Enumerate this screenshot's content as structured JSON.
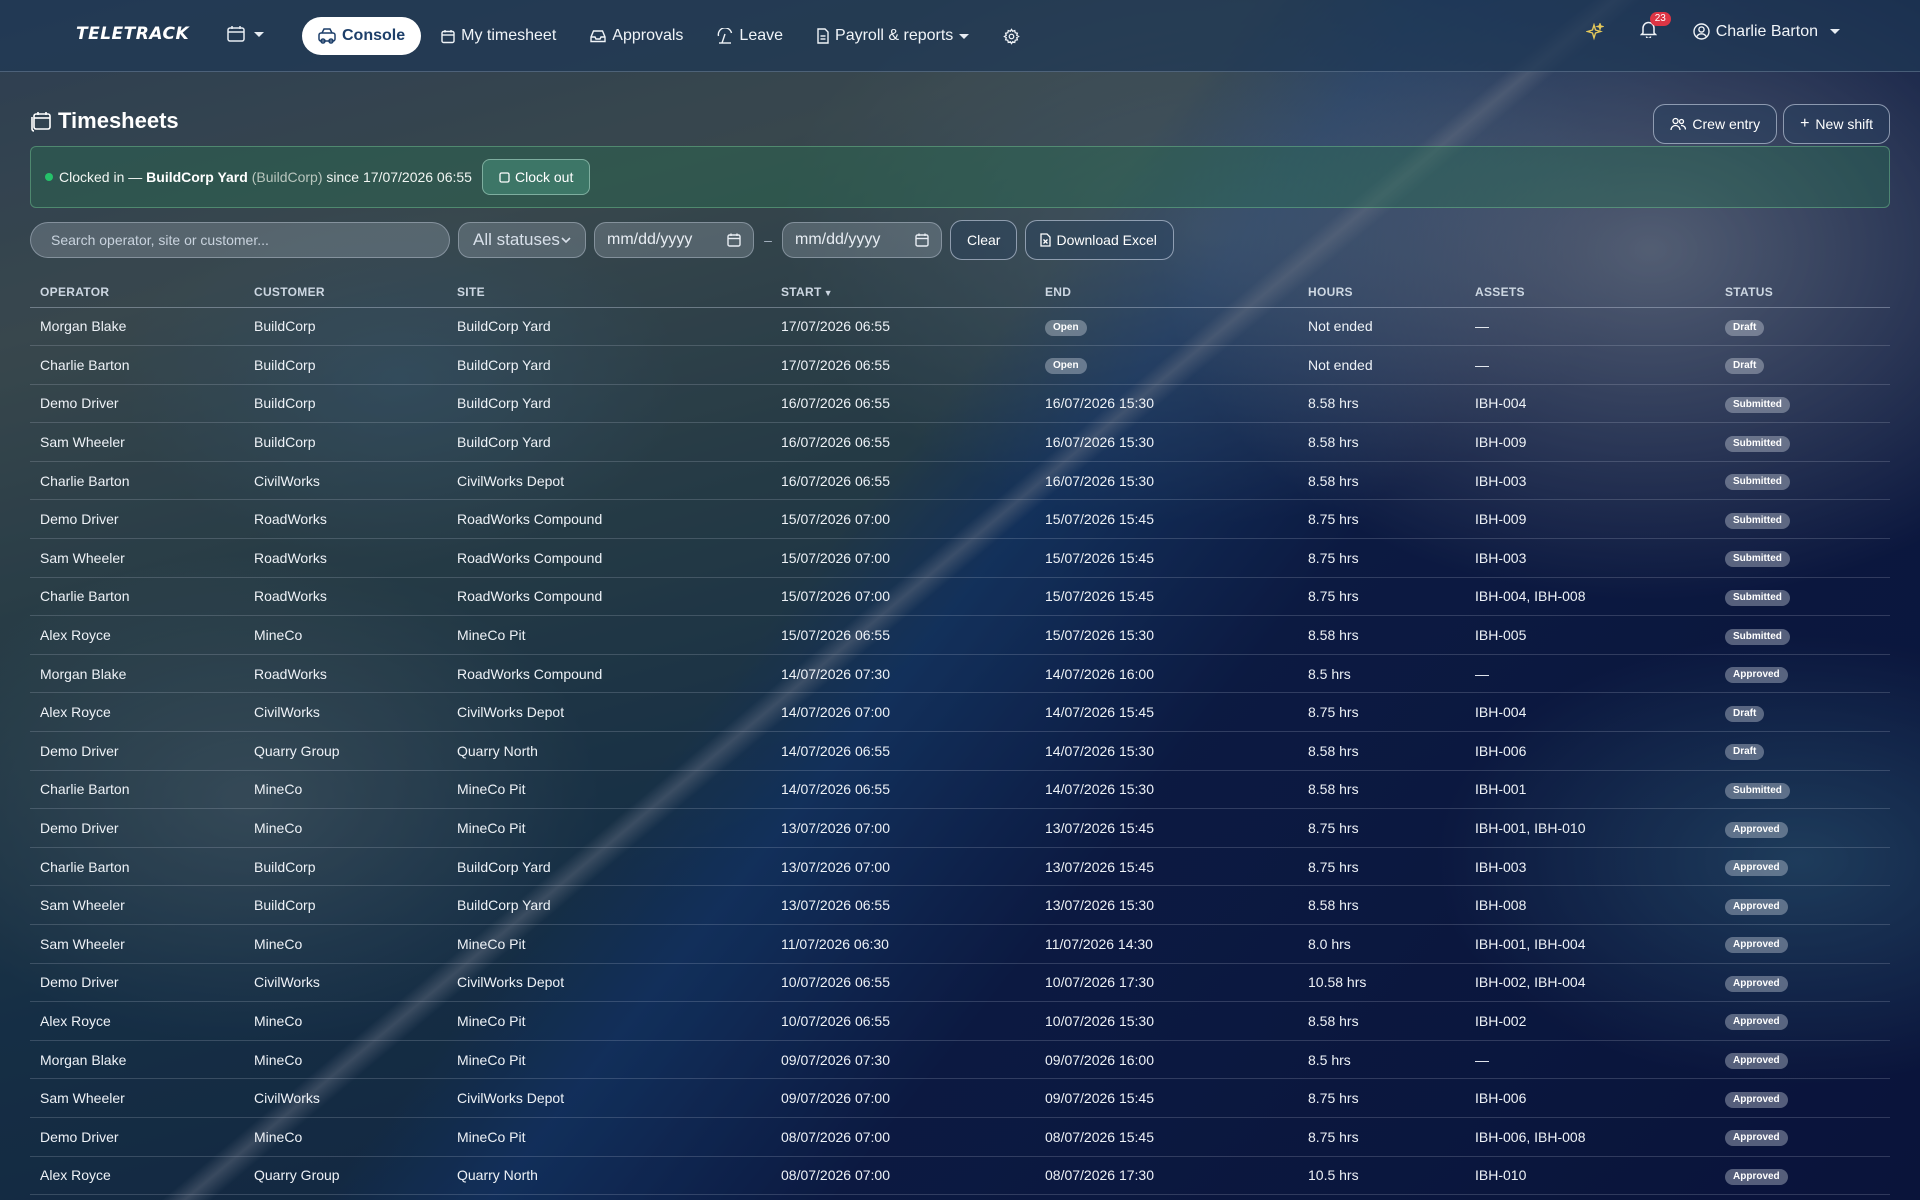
{
  "nav": {
    "brand": "TELETRACK",
    "items": [
      {
        "label": "Console",
        "icon": "console-icon",
        "active": true
      },
      {
        "label": "My timesheet",
        "icon": "calendar-icon",
        "active": false
      },
      {
        "label": "Approvals",
        "icon": "inbox-icon",
        "active": false
      },
      {
        "label": "Leave",
        "icon": "umbrella-icon",
        "active": false
      },
      {
        "label": "Payroll & reports",
        "icon": "document-icon",
        "active": false,
        "dropdown": true
      }
    ],
    "notifications_count": "23",
    "user_name": "Charlie Barton"
  },
  "page": {
    "title": "Timesheets",
    "crew_entry_label": "Crew entry",
    "new_shift_label": "New shift"
  },
  "clock": {
    "prefix": "Clocked in —",
    "site": "BuildCorp Yard",
    "customer": "(BuildCorp)",
    "since": "since 17/07/2026 06:55",
    "clock_out_label": "Clock out",
    "status_color": "#25c26a"
  },
  "filters": {
    "search_placeholder": "Search operator, site or customer...",
    "status_value": "All statuses",
    "date_from_placeholder": "mm/dd/yyyy",
    "date_to_placeholder": "mm/dd/yyyy",
    "dash": "–",
    "clear_label": "Clear",
    "excel_label": "Download Excel"
  },
  "table": {
    "columns": [
      "OPERATOR",
      "CUSTOMER",
      "SITE",
      "START",
      "END",
      "HOURS",
      "ASSETS",
      "STATUS"
    ],
    "sort_indicator": "▼",
    "rows": [
      {
        "operator": "Morgan Blake",
        "customer": "BuildCorp",
        "site": "BuildCorp Yard",
        "start": "17/07/2026 06:55",
        "end": "Open",
        "hours": "Not ended",
        "assets": "—",
        "status": "Draft"
      },
      {
        "operator": "Charlie Barton",
        "customer": "BuildCorp",
        "site": "BuildCorp Yard",
        "start": "17/07/2026 06:55",
        "end": "Open",
        "hours": "Not ended",
        "assets": "—",
        "status": "Draft"
      },
      {
        "operator": "Demo Driver",
        "customer": "BuildCorp",
        "site": "BuildCorp Yard",
        "start": "16/07/2026 06:55",
        "end": "16/07/2026 15:30",
        "hours": "8.58 hrs",
        "assets": "IBH-004",
        "status": "Submitted"
      },
      {
        "operator": "Sam Wheeler",
        "customer": "BuildCorp",
        "site": "BuildCorp Yard",
        "start": "16/07/2026 06:55",
        "end": "16/07/2026 15:30",
        "hours": "8.58 hrs",
        "assets": "IBH-009",
        "status": "Submitted"
      },
      {
        "operator": "Charlie Barton",
        "customer": "CivilWorks",
        "site": "CivilWorks Depot",
        "start": "16/07/2026 06:55",
        "end": "16/07/2026 15:30",
        "hours": "8.58 hrs",
        "assets": "IBH-003",
        "status": "Submitted"
      },
      {
        "operator": "Demo Driver",
        "customer": "RoadWorks",
        "site": "RoadWorks Compound",
        "start": "15/07/2026 07:00",
        "end": "15/07/2026 15:45",
        "hours": "8.75 hrs",
        "assets": "IBH-009",
        "status": "Submitted"
      },
      {
        "operator": "Sam Wheeler",
        "customer": "RoadWorks",
        "site": "RoadWorks Compound",
        "start": "15/07/2026 07:00",
        "end": "15/07/2026 15:45",
        "hours": "8.75 hrs",
        "assets": "IBH-003",
        "status": "Submitted"
      },
      {
        "operator": "Charlie Barton",
        "customer": "RoadWorks",
        "site": "RoadWorks Compound",
        "start": "15/07/2026 07:00",
        "end": "15/07/2026 15:45",
        "hours": "8.75 hrs",
        "assets": "IBH-004, IBH-008",
        "status": "Submitted"
      },
      {
        "operator": "Alex Royce",
        "customer": "MineCo",
        "site": "MineCo Pit",
        "start": "15/07/2026 06:55",
        "end": "15/07/2026 15:30",
        "hours": "8.58 hrs",
        "assets": "IBH-005",
        "status": "Submitted"
      },
      {
        "operator": "Morgan Blake",
        "customer": "RoadWorks",
        "site": "RoadWorks Compound",
        "start": "14/07/2026 07:30",
        "end": "14/07/2026 16:00",
        "hours": "8.5 hrs",
        "assets": "—",
        "status": "Approved"
      },
      {
        "operator": "Alex Royce",
        "customer": "CivilWorks",
        "site": "CivilWorks Depot",
        "start": "14/07/2026 07:00",
        "end": "14/07/2026 15:45",
        "hours": "8.75 hrs",
        "assets": "IBH-004",
        "status": "Draft"
      },
      {
        "operator": "Demo Driver",
        "customer": "Quarry Group",
        "site": "Quarry North",
        "start": "14/07/2026 06:55",
        "end": "14/07/2026 15:30",
        "hours": "8.58 hrs",
        "assets": "IBH-006",
        "status": "Draft"
      },
      {
        "operator": "Charlie Barton",
        "customer": "MineCo",
        "site": "MineCo Pit",
        "start": "14/07/2026 06:55",
        "end": "14/07/2026 15:30",
        "hours": "8.58 hrs",
        "assets": "IBH-001",
        "status": "Submitted"
      },
      {
        "operator": "Demo Driver",
        "customer": "MineCo",
        "site": "MineCo Pit",
        "start": "13/07/2026 07:00",
        "end": "13/07/2026 15:45",
        "hours": "8.75 hrs",
        "assets": "IBH-001, IBH-010",
        "status": "Approved"
      },
      {
        "operator": "Charlie Barton",
        "customer": "BuildCorp",
        "site": "BuildCorp Yard",
        "start": "13/07/2026 07:00",
        "end": "13/07/2026 15:45",
        "hours": "8.75 hrs",
        "assets": "IBH-003",
        "status": "Approved"
      },
      {
        "operator": "Sam Wheeler",
        "customer": "BuildCorp",
        "site": "BuildCorp Yard",
        "start": "13/07/2026 06:55",
        "end": "13/07/2026 15:30",
        "hours": "8.58 hrs",
        "assets": "IBH-008",
        "status": "Approved"
      },
      {
        "operator": "Sam Wheeler",
        "customer": "MineCo",
        "site": "MineCo Pit",
        "start": "11/07/2026 06:30",
        "end": "11/07/2026 14:30",
        "hours": "8.0 hrs",
        "assets": "IBH-001, IBH-004",
        "status": "Approved"
      },
      {
        "operator": "Demo Driver",
        "customer": "CivilWorks",
        "site": "CivilWorks Depot",
        "start": "10/07/2026 06:55",
        "end": "10/07/2026 17:30",
        "hours": "10.58 hrs",
        "assets": "IBH-002, IBH-004",
        "status": "Approved"
      },
      {
        "operator": "Alex Royce",
        "customer": "MineCo",
        "site": "MineCo Pit",
        "start": "10/07/2026 06:55",
        "end": "10/07/2026 15:30",
        "hours": "8.58 hrs",
        "assets": "IBH-002",
        "status": "Approved"
      },
      {
        "operator": "Morgan Blake",
        "customer": "MineCo",
        "site": "MineCo Pit",
        "start": "09/07/2026 07:30",
        "end": "09/07/2026 16:00",
        "hours": "8.5 hrs",
        "assets": "—",
        "status": "Approved"
      },
      {
        "operator": "Sam Wheeler",
        "customer": "CivilWorks",
        "site": "CivilWorks Depot",
        "start": "09/07/2026 07:00",
        "end": "09/07/2026 15:45",
        "hours": "8.75 hrs",
        "assets": "IBH-006",
        "status": "Approved"
      },
      {
        "operator": "Demo Driver",
        "customer": "MineCo",
        "site": "MineCo Pit",
        "start": "08/07/2026 07:00",
        "end": "08/07/2026 15:45",
        "hours": "8.75 hrs",
        "assets": "IBH-006, IBH-008",
        "status": "Approved"
      },
      {
        "operator": "Alex Royce",
        "customer": "Quarry Group",
        "site": "Quarry North",
        "start": "08/07/2026 07:00",
        "end": "08/07/2026 17:30",
        "hours": "10.5 hrs",
        "assets": "IBH-010",
        "status": "Approved"
      }
    ]
  }
}
